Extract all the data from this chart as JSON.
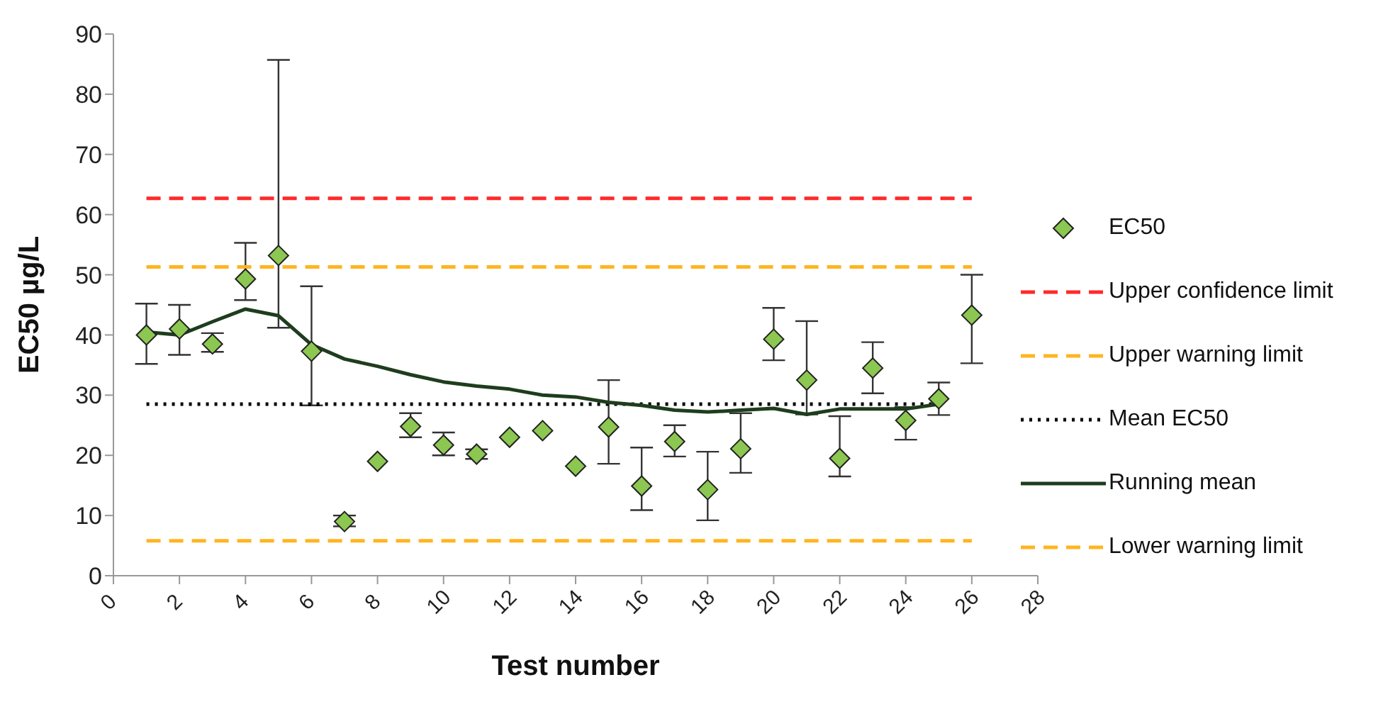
{
  "chart_data": {
    "type": "scatter",
    "xlabel": "Test number",
    "ylabel": "EC50 µg/L",
    "xlim": [
      0,
      28
    ],
    "xticks": [
      0,
      2,
      4,
      6,
      8,
      10,
      12,
      14,
      16,
      18,
      20,
      22,
      24,
      26,
      28
    ],
    "ylim": [
      0,
      90
    ],
    "yticks": [
      0,
      10,
      20,
      30,
      40,
      50,
      60,
      70,
      80,
      90
    ],
    "legend": "right",
    "x": [
      1,
      2,
      3,
      4,
      5,
      6,
      7,
      8,
      9,
      10,
      11,
      12,
      13,
      14,
      15,
      16,
      17,
      18,
      19,
      20,
      21,
      22,
      23,
      24,
      25,
      26
    ],
    "series": [
      {
        "name": "EC50",
        "marker": "diamond",
        "color": "#8cc751",
        "values": [
          40,
          41,
          38.5,
          49.3,
          53.2,
          37.3,
          9,
          19,
          24.8,
          21.7,
          20.2,
          23,
          24.1,
          18.2,
          24.7,
          14.9,
          22.3,
          14.3,
          21.1,
          39.3,
          32.5,
          19.5,
          34.5,
          25.8,
          29.4,
          43.3
        ],
        "errors": [
          [
            35.2,
            45.2
          ],
          [
            36.7,
            45
          ],
          [
            37.2,
            40.3
          ],
          [
            45.8,
            55.3
          ],
          [
            41.2,
            85.7
          ],
          [
            28.3,
            48.1
          ],
          [
            8.2,
            10
          ],
          null,
          [
            23,
            27
          ],
          [
            20,
            23.8
          ],
          [
            19.4,
            21
          ],
          null,
          null,
          null,
          [
            18.6,
            32.5
          ],
          [
            10.9,
            21.3
          ],
          [
            19.8,
            25
          ],
          [
            9.2,
            20.6
          ],
          [
            17.1,
            27
          ],
          [
            35.8,
            44.5
          ],
          [
            26.8,
            42.3
          ],
          [
            16.5,
            26.5
          ],
          [
            30.3,
            38.8
          ],
          [
            22.6,
            28
          ],
          [
            26.7,
            32.1
          ],
          [
            35.3,
            50
          ]
        ]
      },
      {
        "name": "Upper confidence limit",
        "type": "line",
        "color": "#ff2a2a",
        "line_style": "dashed",
        "x": [
          1,
          26
        ],
        "values": [
          62.7,
          62.7
        ]
      },
      {
        "name": "Upper warning limit",
        "type": "line",
        "color": "#ffb520",
        "line_style": "dashed",
        "x": [
          1,
          26
        ],
        "values": [
          51.3,
          51.3
        ]
      },
      {
        "name": "Mean EC50",
        "type": "line",
        "color": "#000000",
        "line_style": "dotted",
        "x": [
          1,
          25
        ],
        "values": [
          28.5,
          28.5
        ]
      },
      {
        "name": "Running mean",
        "type": "line",
        "color": "#1e3d1e",
        "line_style": "solid",
        "x": [
          1,
          2,
          3,
          4,
          5,
          6,
          7,
          8,
          9,
          10,
          11,
          12,
          13,
          14,
          15,
          16,
          17,
          18,
          19,
          20,
          21,
          22,
          23,
          24,
          25
        ],
        "values": [
          40.5,
          40,
          42.2,
          44.3,
          43.2,
          38.4,
          36,
          34.8,
          33.4,
          32.2,
          31.5,
          31,
          30,
          29.7,
          28.8,
          28.3,
          27.5,
          27.2,
          27.5,
          27.8,
          26.8,
          27.7,
          27.7,
          27.7,
          28.5
        ]
      },
      {
        "name": "Lower warning limit",
        "type": "line",
        "color": "#ffb520",
        "line_style": "dashed",
        "x": [
          1,
          26
        ],
        "values": [
          5.8,
          5.8
        ]
      }
    ]
  }
}
